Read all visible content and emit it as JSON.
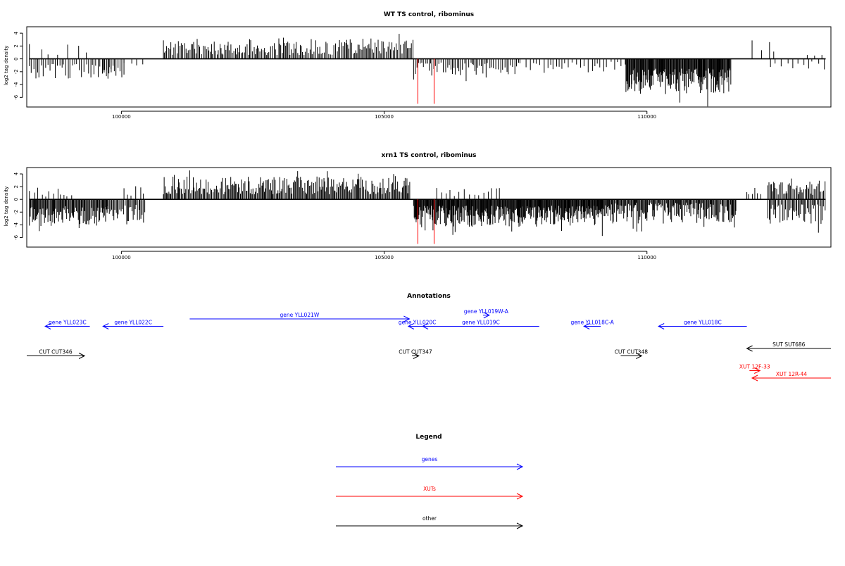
{
  "colors": {
    "genes": "#0000ff",
    "xuts": "#ff0000",
    "other": "#000000",
    "axis": "#000000",
    "bars": "#000000",
    "highlight": "#ff0000"
  },
  "chart_data": [
    {
      "type": "bar",
      "title": "WT TS control, ribominus",
      "ylabel": "log2 tag density",
      "xlabel": "",
      "xlim": [
        98200,
        113500
      ],
      "ylim": [
        -7.5,
        5
      ],
      "x_ticks": [
        100000,
        105000,
        110000
      ],
      "y_ticks": [
        4,
        2,
        0,
        -2,
        -4,
        -6
      ],
      "highlights": [
        {
          "x": 105640,
          "value": -7
        },
        {
          "x": 105950,
          "value": -7
        }
      ],
      "segments": [
        {
          "from": 98250,
          "to": 99850,
          "sign": -1,
          "minv": -0.8,
          "maxv": -3.2,
          "spacing": 38,
          "seed": 3
        },
        {
          "from": 98250,
          "to": 99350,
          "sign": 1,
          "minv": 0.5,
          "maxv": 2.6,
          "spacing": 190,
          "seed": 5
        },
        {
          "from": 99650,
          "to": 100050,
          "sign": -1,
          "minv": -1.0,
          "maxv": -3.5,
          "spacing": 32,
          "seed": 8
        },
        {
          "from": 100050,
          "to": 100450,
          "sign": -1,
          "minv": -0.5,
          "maxv": -1.5,
          "spacing": 130,
          "seed": 9
        },
        {
          "from": 100800,
          "to": 105450,
          "sign": 1,
          "minv": 0.6,
          "maxv": 3.2,
          "spacing": 26,
          "seed": 11
        },
        {
          "from": 105420,
          "to": 105560,
          "sign": 1,
          "minv": 1.5,
          "maxv": 3.2,
          "spacing": 25,
          "seed": 12
        },
        {
          "from": 105560,
          "to": 107600,
          "sign": -1,
          "minv": -0.5,
          "maxv": -2.6,
          "spacing": 36,
          "seed": 17
        },
        {
          "from": 107700,
          "to": 109600,
          "sign": -1,
          "minv": -0.4,
          "maxv": -2.2,
          "spacing": 65,
          "seed": 19
        },
        {
          "from": 109600,
          "to": 111600,
          "sign": -1,
          "minv": -1.5,
          "maxv": -5.5,
          "spacing": 13,
          "seed": 23
        },
        {
          "from": 112000,
          "to": 112500,
          "sign": 1,
          "minv": 1.0,
          "maxv": 3.0,
          "spacing": 130,
          "seed": 29
        },
        {
          "from": 112350,
          "to": 113400,
          "sign": -1,
          "minv": -0.4,
          "maxv": -2.0,
          "spacing": 95,
          "seed": 31
        },
        {
          "from": 113050,
          "to": 113350,
          "sign": 1,
          "minv": 0.5,
          "maxv": 1.0,
          "spacing": 110,
          "seed": 33
        }
      ]
    },
    {
      "type": "bar",
      "title": "xrn1 TS control, ribominus",
      "ylabel": "log2 tag density",
      "xlabel": "",
      "xlim": [
        98200,
        113500
      ],
      "ylim": [
        -7.5,
        5
      ],
      "x_ticks": [
        100000,
        105000,
        110000
      ],
      "y_ticks": [
        4,
        2,
        0,
        -2,
        -4,
        -6
      ],
      "highlights": [
        {
          "x": 105640,
          "value": -7
        },
        {
          "x": 105950,
          "value": -7
        }
      ],
      "segments": [
        {
          "from": 98250,
          "to": 99750,
          "sign": -1,
          "minv": -1.0,
          "maxv": -4.2,
          "spacing": 16,
          "seed": 41
        },
        {
          "from": 98250,
          "to": 99100,
          "sign": 1,
          "minv": 0.4,
          "maxv": 2.0,
          "spacing": 75,
          "seed": 43
        },
        {
          "from": 99700,
          "to": 100450,
          "sign": -1,
          "minv": -0.8,
          "maxv": -3.5,
          "spacing": 22,
          "seed": 47
        },
        {
          "from": 100050,
          "to": 100450,
          "sign": 1,
          "minv": 0.5,
          "maxv": 2.6,
          "spacing": 80,
          "seed": 49
        },
        {
          "from": 100800,
          "to": 105500,
          "sign": 1,
          "minv": 0.8,
          "maxv": 3.6,
          "spacing": 20,
          "seed": 53
        },
        {
          "from": 105560,
          "to": 109200,
          "sign": -1,
          "minv": -1.0,
          "maxv": -4.3,
          "spacing": 12,
          "seed": 59
        },
        {
          "from": 106000,
          "to": 107200,
          "sign": 1,
          "minv": 0.5,
          "maxv": 1.8,
          "spacing": 75,
          "seed": 61
        },
        {
          "from": 109200,
          "to": 111700,
          "sign": -1,
          "minv": -0.5,
          "maxv": -3.8,
          "spacing": 16,
          "seed": 67
        },
        {
          "from": 111900,
          "to": 112200,
          "sign": 1,
          "minv": 0.8,
          "maxv": 2.6,
          "spacing": 55,
          "seed": 71
        },
        {
          "from": 112300,
          "to": 113400,
          "sign": 1,
          "minv": 0.6,
          "maxv": 3.0,
          "spacing": 22,
          "seed": 73
        },
        {
          "from": 112300,
          "to": 113400,
          "sign": -1,
          "minv": -0.8,
          "maxv": -4.0,
          "spacing": 24,
          "seed": 79
        }
      ]
    }
  ],
  "annotations": {
    "title": "Annotations",
    "xlim": [
      98200,
      113500
    ],
    "features": [
      {
        "label": "gene YLL023C",
        "category": "genes",
        "start": 98550,
        "end": 99400,
        "strand": "-",
        "row": 1,
        "label_row": 1
      },
      {
        "label": "gene YLL022C",
        "category": "genes",
        "start": 99650,
        "end": 100800,
        "strand": "-",
        "row": 1,
        "label_row": 1
      },
      {
        "label": "gene YLL021W",
        "category": "genes",
        "start": 101300,
        "end": 105480,
        "strand": "+",
        "row": 0,
        "label_row": 0
      },
      {
        "label": "gene YLL020C",
        "category": "genes",
        "start": 105460,
        "end": 105800,
        "strand": "-",
        "row": 1,
        "label_row": 1
      },
      {
        "label": "gene YLL019W-A",
        "category": "genes",
        "start": 106880,
        "end": 107000,
        "strand": "+",
        "row": -0.5,
        "label_row": -0.5
      },
      {
        "label": "gene YLL019C",
        "category": "genes",
        "start": 105730,
        "end": 107950,
        "strand": "-",
        "row": 1,
        "label_row": 1
      },
      {
        "label": "gene YLL018C-A",
        "category": "genes",
        "start": 108800,
        "end": 109120,
        "strand": "-",
        "row": 1,
        "label_row": 1
      },
      {
        "label": "gene YLL018C",
        "category": "genes",
        "start": 110220,
        "end": 111900,
        "strand": "-",
        "row": 1,
        "label_row": 1
      },
      {
        "label": "CUT CUT346",
        "category": "other",
        "start": 97950,
        "end": 99300,
        "strand": "+",
        "row": 5,
        "label_row": 5
      },
      {
        "label": "CUT CUT347",
        "category": "other",
        "start": 105530,
        "end": 105660,
        "strand": "+",
        "row": 5,
        "label_row": 5
      },
      {
        "label": "CUT CUT348",
        "category": "other",
        "start": 109500,
        "end": 109900,
        "strand": "+",
        "row": 5,
        "label_row": 5
      },
      {
        "label": "SUT SUT686",
        "category": "other",
        "start": 111900,
        "end": 113500,
        "strand": "-",
        "row": 4,
        "label_row": 4
      },
      {
        "label": "XUT 12F-33",
        "category": "xuts",
        "start": 111950,
        "end": 112150,
        "strand": "+",
        "row": 7,
        "label_row": 7
      },
      {
        "label": "XUT 12R-44",
        "category": "xuts",
        "start": 112000,
        "end": 113500,
        "strand": "-",
        "row": 8,
        "label_row": 8
      }
    ]
  },
  "legend": {
    "title": "Legend",
    "items": [
      {
        "label": "genes",
        "color": "#0000ff"
      },
      {
        "label": "XUTs",
        "color": "#ff0000"
      },
      {
        "label": "other",
        "color": "#000000"
      }
    ]
  }
}
